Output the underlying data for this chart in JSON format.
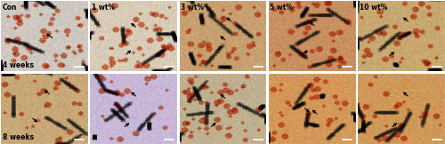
{
  "figsize": [
    5.0,
    1.62
  ],
  "dpi": 100,
  "nrows": 2,
  "ncols": 5,
  "col_labels": [
    "Con",
    "1 wt%",
    "3 wt%",
    "5 wt%",
    "10 wt%"
  ],
  "row_labels": [
    "4 weeks",
    "8 weeks"
  ],
  "label_fontsize": 5.5,
  "special_colors": {
    "0,0": "#cfc8c0",
    "0,1": "#d8ccb8",
    "0,2": "#c8a070",
    "0,3": "#c89060",
    "0,4": "#c8a870",
    "1,0": "#c8a878",
    "1,1": "#c8b8d8",
    "1,2": "#c0b090",
    "1,3": "#d49858",
    "1,4": "#d09858"
  },
  "arrow_defs": {
    "0,0": [
      [
        [
          0.62,
          0.45
        ],
        [
          0.5,
          0.55
        ]
      ]
    ],
    "0,1": [
      [
        [
          0.4,
          0.22
        ],
        [
          0.5,
          0.32
        ]
      ],
      [
        [
          0.55,
          0.6
        ],
        [
          0.45,
          0.7
        ]
      ]
    ],
    "0,2": [
      [
        [
          0.42,
          0.28
        ],
        [
          0.52,
          0.38
        ]
      ],
      [
        [
          0.55,
          0.42
        ],
        [
          0.45,
          0.52
        ]
      ],
      [
        [
          0.62,
          0.68
        ],
        [
          0.52,
          0.78
        ]
      ]
    ],
    "0,3": [
      [
        [
          0.38,
          0.22
        ],
        [
          0.48,
          0.32
        ]
      ],
      [
        [
          0.55,
          0.62
        ],
        [
          0.45,
          0.72
        ]
      ]
    ],
    "0,4": [
      [
        [
          0.35,
          0.2
        ],
        [
          0.45,
          0.3
        ]
      ],
      [
        [
          0.6,
          0.68
        ],
        [
          0.5,
          0.78
        ]
      ]
    ],
    "1,0": [
      [
        [
          0.35,
          0.38
        ],
        [
          0.45,
          0.28
        ]
      ],
      [
        [
          0.58,
          0.68
        ],
        [
          0.48,
          0.78
        ]
      ]
    ],
    "1,1": [
      [
        [
          0.38,
          0.22
        ],
        [
          0.48,
          0.32
        ]
      ],
      [
        [
          0.55,
          0.65
        ],
        [
          0.45,
          0.75
        ]
      ]
    ],
    "1,2": [
      [
        [
          0.35,
          0.22
        ],
        [
          0.45,
          0.32
        ]
      ],
      [
        [
          0.55,
          0.62
        ],
        [
          0.45,
          0.72
        ]
      ]
    ],
    "1,3": [
      [
        [
          0.4,
          0.52
        ],
        [
          0.5,
          0.42
        ]
      ],
      [
        [
          0.58,
          0.4
        ],
        [
          0.48,
          0.5
        ]
      ]
    ],
    "1,4": [
      [
        [
          0.38,
          0.22
        ],
        [
          0.48,
          0.32
        ]
      ],
      [
        [
          0.6,
          0.65
        ],
        [
          0.5,
          0.75
        ]
      ]
    ]
  }
}
